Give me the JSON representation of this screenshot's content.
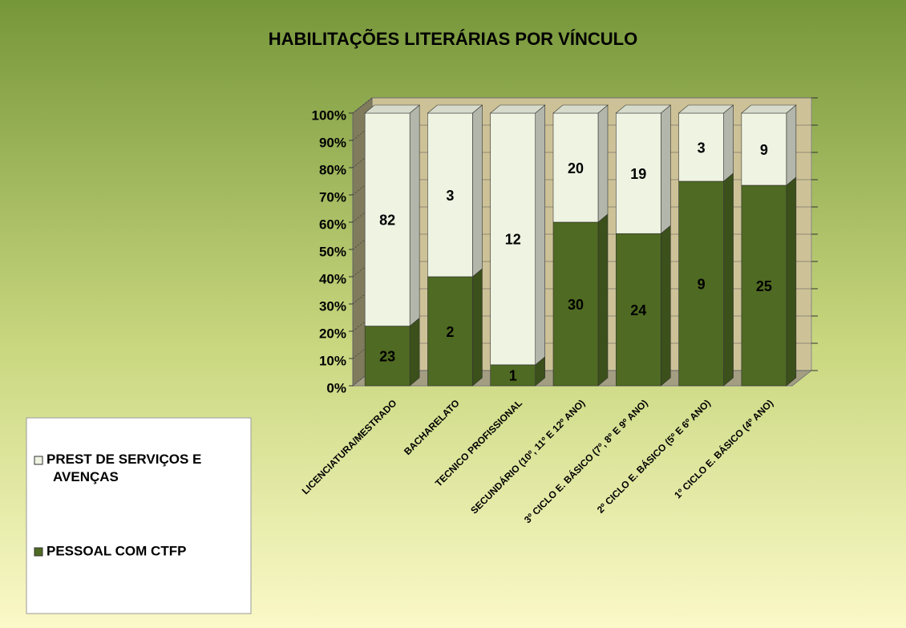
{
  "chart_data": {
    "type": "stacked_bar_100_3d",
    "title": "HABILITAÇÕES LITERÁRIAS POR VÍNCULO",
    "categories": [
      "LICENCIATURA/MESTRADO",
      "BACHARELATO",
      "TECNICO PROFISSIONAL",
      "SECUNDÁRIO (10º, 11º E 12º ANO)",
      "3º CICLO E. BÁSICO (7º, 8º E 9º ANO)",
      "2º CICLO E. BÁSICO (5º E 6º ANO)",
      "1º CICLO E. BÁSICO (4º ANO)"
    ],
    "series": [
      {
        "name": "PESSOAL COM CTFP",
        "color": "#4f6a22",
        "values": [
          23,
          2,
          1,
          30,
          24,
          9,
          25
        ]
      },
      {
        "name": "PREST DE SERVIÇOS E AVENÇAS",
        "color": "#eef3e2",
        "values": [
          82,
          3,
          12,
          20,
          19,
          3,
          9
        ]
      }
    ],
    "ylim": [
      0,
      100
    ],
    "yticks": [
      {
        "value": 0,
        "label": "0%"
      },
      {
        "value": 10,
        "label": "10%"
      },
      {
        "value": 20,
        "label": "20%"
      },
      {
        "value": 30,
        "label": "30%"
      },
      {
        "value": 40,
        "label": "40%"
      },
      {
        "value": 50,
        "label": "50%"
      },
      {
        "value": 60,
        "label": "60%"
      },
      {
        "value": 70,
        "label": "70%"
      },
      {
        "value": 80,
        "label": "80%"
      },
      {
        "value": 90,
        "label": "90%"
      },
      {
        "value": 100,
        "label": "100%"
      }
    ],
    "grid": true,
    "legend": "left"
  }
}
